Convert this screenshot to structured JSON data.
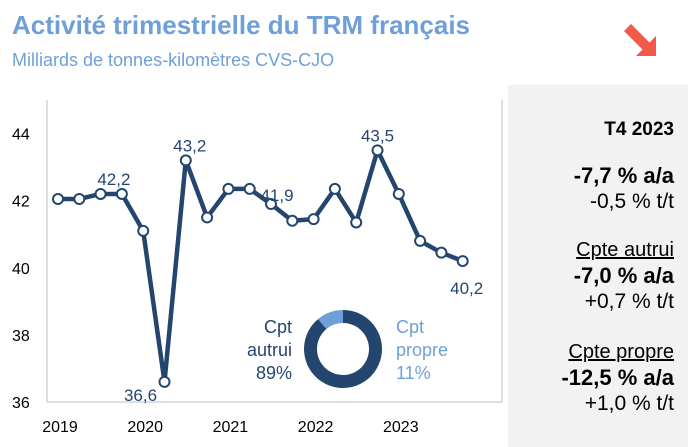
{
  "header": {
    "title": "Activité trimestrielle du TRM français",
    "subtitle": "Milliards de tonnes-kilomètres CVS-CJO",
    "trend_icon": "arrow-down-right-icon",
    "trend_color": "#f15a4a"
  },
  "side_panel": {
    "period": "T4 2023",
    "total_yoy": "-7,7 % a/a",
    "total_qoq": "-0,5 % t/t",
    "autrui_label": "Cpte autrui",
    "autrui_yoy": "-7,0 % a/a",
    "autrui_qoq": "+0,7 % t/t",
    "propre_label": "Cpte propre",
    "propre_yoy": "-12,5 % a/a",
    "propre_qoq": "+1,0 % t/t"
  },
  "colors": {
    "line": "#24466e",
    "light": "#6f9fd8",
    "panel": "#f2f2f2"
  },
  "chart_data": [
    {
      "type": "line",
      "xlabel": "",
      "ylabel": "",
      "x_tick_labels": [
        "2019",
        "2020",
        "2021",
        "2022",
        "2023"
      ],
      "y_ticks": [
        36,
        38,
        40,
        42,
        44
      ],
      "ylim": [
        36,
        45
      ],
      "x": [
        "2019T1",
        "2019T2",
        "2019T3",
        "2019T4",
        "2020T1",
        "2020T2",
        "2020T3",
        "2020T4",
        "2021T1",
        "2021T2",
        "2021T3",
        "2021T4",
        "2022T1",
        "2022T2",
        "2022T3",
        "2022T4",
        "2023T1",
        "2023T2",
        "2023T3",
        "2023T4"
      ],
      "values": [
        42.05,
        42.05,
        42.2,
        42.2,
        41.1,
        36.6,
        43.2,
        41.5,
        42.35,
        42.35,
        41.9,
        41.4,
        41.45,
        42.35,
        41.35,
        43.5,
        42.2,
        40.8,
        40.45,
        40.2
      ],
      "data_labels": [
        {
          "index": 3,
          "text": "42,2"
        },
        {
          "index": 5,
          "text": "36,6"
        },
        {
          "index": 6,
          "text": "43,2"
        },
        {
          "index": 10,
          "text": "41,9"
        },
        {
          "index": 15,
          "text": "43,5"
        },
        {
          "index": 19,
          "text": "40,2"
        }
      ],
      "grid": false
    },
    {
      "type": "pie",
      "donut": true,
      "slices": [
        {
          "label_line1": "Cpt",
          "label_line2": "autrui",
          "pct_text": "89%",
          "value": 89
        },
        {
          "label_line1": "Cpt",
          "label_line2": "propre",
          "pct_text": "11%",
          "value": 11
        }
      ]
    }
  ]
}
